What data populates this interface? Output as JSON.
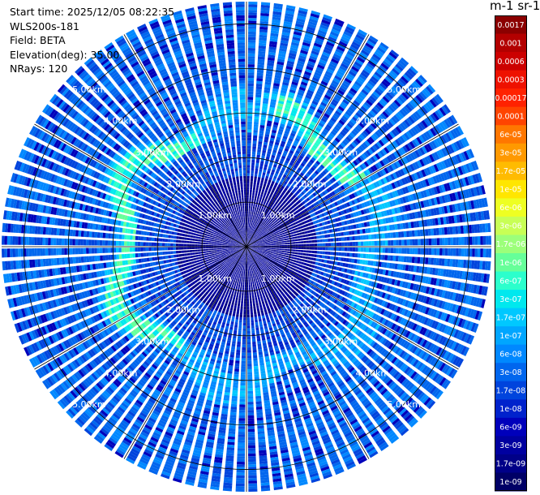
{
  "header": {
    "start_time": "Start time: 2025/12/05 08:22:35",
    "instrument": "WLS200s-181",
    "field": "Field: BETA",
    "elevation": "Elevation(deg): 35.00",
    "nrays": "NRays: 120"
  },
  "colorbar": {
    "title": "m-1 sr-1",
    "labels": [
      "0.0017",
      "0.001",
      "0.0006",
      "0.0003",
      "0.00017",
      "0.0001",
      "6e-05",
      "3e-05",
      "1.7e-05",
      "1e-05",
      "6e-06",
      "3e-06",
      "1.7e-06",
      "1e-06",
      "6e-07",
      "3e-07",
      "1.7e-07",
      "1e-07",
      "6e-08",
      "3e-08",
      "1.7e-08",
      "1e-08",
      "6e-09",
      "3e-09",
      "1.7e-09",
      "1e-09"
    ],
    "colors": [
      "#8b0000",
      "#b30000",
      "#cc0000",
      "#ee1100",
      "#ff2200",
      "#ff4400",
      "#ff7700",
      "#ff9900",
      "#ffbb00",
      "#ffe600",
      "#eeff22",
      "#c8ff55",
      "#9cff7a",
      "#66ff99",
      "#2bffcc",
      "#00e8ee",
      "#00c8ff",
      "#00a6ff",
      "#0088ff",
      "#0066ee",
      "#0044dd",
      "#0022cc",
      "#0000bb",
      "#0000a0",
      "#000088",
      "#000066"
    ]
  },
  "chart_data": {
    "type": "ppi",
    "title": "",
    "radial_unit": "km",
    "max_range_km": 5.5,
    "range_ring_labels": [
      "1.00km",
      "2.00km",
      "3.00km",
      "4.00km",
      "5.00km"
    ],
    "rings_km": [
      1,
      2,
      3,
      4,
      5
    ],
    "n_rays": 120,
    "azimuth_lines_deg": [
      0,
      30,
      60,
      90,
      120,
      150,
      180,
      210,
      240,
      270,
      300,
      330
    ],
    "elevation_deg": 35.0,
    "field": "BETA",
    "ring_label_azimuths_deg": [
      -45,
      45,
      135,
      225
    ]
  }
}
